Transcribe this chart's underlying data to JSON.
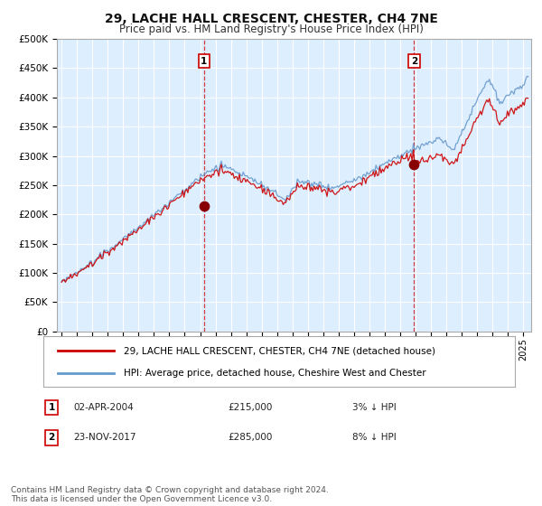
{
  "title": "29, LACHE HALL CRESCENT, CHESTER, CH4 7NE",
  "subtitle": "Price paid vs. HM Land Registry's House Price Index (HPI)",
  "background_color": "#ffffff",
  "plot_bg_color": "#ddeeff",
  "grid_color": "#ffffff",
  "ylim": [
    0,
    500000
  ],
  "yticks": [
    0,
    50000,
    100000,
    150000,
    200000,
    250000,
    300000,
    350000,
    400000,
    450000,
    500000
  ],
  "xlim_start": 1994.7,
  "xlim_end": 2025.5,
  "purchase1": {
    "date_num": 2004.25,
    "price": 215000,
    "label": "1",
    "date_str": "02-APR-2004",
    "pct": "3%"
  },
  "purchase2": {
    "date_num": 2017.9,
    "price": 285000,
    "label": "2",
    "date_str": "23-NOV-2017",
    "pct": "8%"
  },
  "legend_label_red": "29, LACHE HALL CRESCENT, CHESTER, CH4 7NE (detached house)",
  "legend_label_blue": "HPI: Average price, detached house, Cheshire West and Chester",
  "footnote": "Contains HM Land Registry data © Crown copyright and database right 2024.\nThis data is licensed under the Open Government Licence v3.0.",
  "red_color": "#cc0000",
  "blue_color": "#6699cc",
  "marker_color": "#880000",
  "title_fontsize": 10,
  "subtitle_fontsize": 8.5,
  "tick_fontsize": 7.5,
  "legend_fontsize": 7.5,
  "table_fontsize": 7.5,
  "footnote_fontsize": 6.5
}
